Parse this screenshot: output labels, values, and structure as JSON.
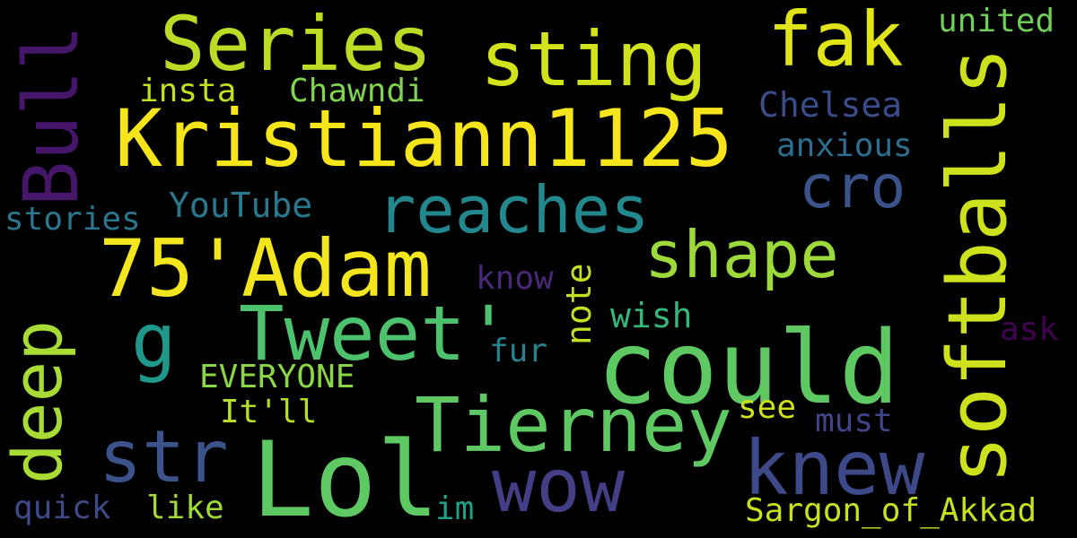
{
  "words": [
    {
      "text": "Kristiann1125",
      "color": "#f7e51c"
    },
    {
      "text": "Series",
      "color": "#bcdb24"
    },
    {
      "text": "sting",
      "color": "#d2e21b"
    },
    {
      "text": "fak",
      "color": "#e0e418"
    },
    {
      "text": "united",
      "color": "#6ece58"
    },
    {
      "text": "Bull",
      "color": "#46166b"
    },
    {
      "text": "insta",
      "color": "#c2df23"
    },
    {
      "text": "Chawndi",
      "color": "#7fd34e"
    },
    {
      "text": "Chelsea",
      "color": "#3a4c8a"
    },
    {
      "text": "cro",
      "color": "#3b528b"
    },
    {
      "text": "anxious",
      "color": "#2d6e8e"
    },
    {
      "text": "reaches",
      "color": "#23888e"
    },
    {
      "text": "softballs",
      "color": "#cde11d"
    },
    {
      "text": "YouTube",
      "color": "#2a788e"
    },
    {
      "text": "stories",
      "color": "#2b758e"
    },
    {
      "text": "shape",
      "color": "#9dd93b"
    },
    {
      "text": "75'Adam",
      "color": "#f4e61e"
    },
    {
      "text": "know",
      "color": "#482878"
    },
    {
      "text": "note",
      "color": "#c5df22"
    },
    {
      "text": "deep",
      "color": "#a8db34"
    },
    {
      "text": "g",
      "color": "#1f988b"
    },
    {
      "text": "Tweet'",
      "color": "#4cc26c"
    },
    {
      "text": "wish",
      "color": "#35b779"
    },
    {
      "text": "could",
      "color": "#5ec962"
    },
    {
      "text": "ask",
      "color": "#440154"
    },
    {
      "text": "fur",
      "color": "#26828e"
    },
    {
      "text": "EVERYONE",
      "color": "#8bd646"
    },
    {
      "text": "It'll",
      "color": "#b5de2b"
    },
    {
      "text": "Tierney",
      "color": "#5ec962"
    },
    {
      "text": "see",
      "color": "#cde11d"
    },
    {
      "text": "must",
      "color": "#414487"
    },
    {
      "text": "str",
      "color": "#3b528b"
    },
    {
      "text": "Lol",
      "color": "#5ec962"
    },
    {
      "text": "wow",
      "color": "#433e85"
    },
    {
      "text": "knew",
      "color": "#3e4989"
    },
    {
      "text": "quick",
      "color": "#3e4a89"
    },
    {
      "text": "like",
      "color": "#a0da39"
    },
    {
      "text": "im",
      "color": "#1fa187"
    },
    {
      "text": "Sargon_of_Akkad",
      "color": "#c8e020"
    }
  ]
}
